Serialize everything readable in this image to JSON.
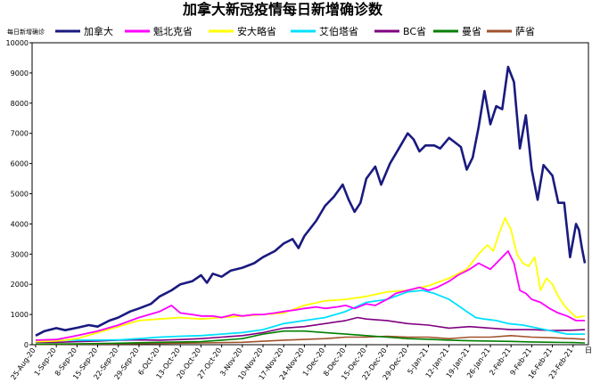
{
  "chart_data": {
    "type": "line",
    "title": "加拿大新冠疫情每日新增确诊数",
    "ylabel": "每日新增确诊",
    "xlabel": "日",
    "ylim": [
      0,
      10000
    ],
    "yticks": [
      0,
      1000,
      2000,
      3000,
      4000,
      5000,
      6000,
      7000,
      8000,
      9000,
      10000
    ],
    "legend_position": "top",
    "grid": false,
    "x_tick_labels": [
      "25-Aug-20",
      "1-Sep-20",
      "8-Sep-20",
      "15-Sep-20",
      "22-Sep-20",
      "29-Sep-20",
      "6-Oct-20",
      "13-Oct-20",
      "20-Oct-20",
      "27-Oct-20",
      "3-Nov-20",
      "10-Nov-20",
      "17-Nov-20",
      "24-Nov-20",
      "1-Dec-20",
      "8-Dec-20",
      "15-Dec-20",
      "22-Dec-20",
      "29-Dec-20",
      "5-Jan-21",
      "12-Jan-21",
      "19-Jan-21",
      "26-Jan-21",
      "2-Feb-21",
      "9-Feb-21",
      "16-Feb-21",
      "23-Feb-21"
    ],
    "x_first_day": 0,
    "x_last_day": 186,
    "series": [
      {
        "name": "加拿大",
        "color": "#1a1a80",
        "width": 2.6,
        "points": [
          [
            0,
            300
          ],
          [
            3,
            450
          ],
          [
            7,
            550
          ],
          [
            10,
            480
          ],
          [
            14,
            560
          ],
          [
            18,
            650
          ],
          [
            21,
            600
          ],
          [
            25,
            800
          ],
          [
            28,
            900
          ],
          [
            32,
            1100
          ],
          [
            35,
            1200
          ],
          [
            39,
            1350
          ],
          [
            42,
            1600
          ],
          [
            46,
            1800
          ],
          [
            49,
            2000
          ],
          [
            53,
            2100
          ],
          [
            56,
            2300
          ],
          [
            58,
            2050
          ],
          [
            60,
            2350
          ],
          [
            63,
            2250
          ],
          [
            66,
            2450
          ],
          [
            70,
            2550
          ],
          [
            74,
            2700
          ],
          [
            77,
            2900
          ],
          [
            81,
            3100
          ],
          [
            84,
            3350
          ],
          [
            87,
            3500
          ],
          [
            89,
            3200
          ],
          [
            91,
            3600
          ],
          [
            95,
            4100
          ],
          [
            98,
            4600
          ],
          [
            101,
            4900
          ],
          [
            104,
            5300
          ],
          [
            106,
            4800
          ],
          [
            108,
            4400
          ],
          [
            110,
            4700
          ],
          [
            112,
            5500
          ],
          [
            115,
            5900
          ],
          [
            117,
            5300
          ],
          [
            120,
            6000
          ],
          [
            123,
            6500
          ],
          [
            126,
            7000
          ],
          [
            128,
            6800
          ],
          [
            130,
            6400
          ],
          [
            132,
            6600
          ],
          [
            135,
            6600
          ],
          [
            137,
            6500
          ],
          [
            140,
            6850
          ],
          [
            142,
            6700
          ],
          [
            144,
            6550
          ],
          [
            146,
            5800
          ],
          [
            148,
            6200
          ],
          [
            150,
            7200
          ],
          [
            152,
            8400
          ],
          [
            154,
            7300
          ],
          [
            156,
            7900
          ],
          [
            158,
            7800
          ],
          [
            160,
            9200
          ],
          [
            162,
            8700
          ],
          [
            164,
            6500
          ],
          [
            166,
            7600
          ],
          [
            168,
            5800
          ],
          [
            170,
            4800
          ],
          [
            172,
            5950
          ],
          [
            175,
            5600
          ],
          [
            177,
            4700
          ],
          [
            179,
            4700
          ],
          [
            181,
            2900
          ],
          [
            183,
            4000
          ],
          [
            184,
            3800
          ],
          [
            185,
            3200
          ],
          [
            186,
            2700
          ]
        ]
      },
      {
        "name": "魁北克省",
        "color": "#ff00ff",
        "width": 1.8,
        "points": [
          [
            0,
            150
          ],
          [
            7,
            170
          ],
          [
            14,
            300
          ],
          [
            21,
            450
          ],
          [
            28,
            650
          ],
          [
            35,
            900
          ],
          [
            42,
            1100
          ],
          [
            46,
            1300
          ],
          [
            49,
            1050
          ],
          [
            53,
            1000
          ],
          [
            56,
            950
          ],
          [
            60,
            950
          ],
          [
            63,
            900
          ],
          [
            67,
            1000
          ],
          [
            70,
            950
          ],
          [
            74,
            1000
          ],
          [
            77,
            1000
          ],
          [
            81,
            1050
          ],
          [
            84,
            1100
          ],
          [
            88,
            1150
          ],
          [
            91,
            1200
          ],
          [
            95,
            1250
          ],
          [
            98,
            1200
          ],
          [
            102,
            1250
          ],
          [
            105,
            1300
          ],
          [
            108,
            1200
          ],
          [
            112,
            1350
          ],
          [
            115,
            1300
          ],
          [
            119,
            1500
          ],
          [
            122,
            1700
          ],
          [
            126,
            1800
          ],
          [
            130,
            1900
          ],
          [
            133,
            1800
          ],
          [
            136,
            1900
          ],
          [
            140,
            2100
          ],
          [
            143,
            2300
          ],
          [
            147,
            2500
          ],
          [
            150,
            2700
          ],
          [
            154,
            2500
          ],
          [
            157,
            2800
          ],
          [
            160,
            3100
          ],
          [
            162,
            2700
          ],
          [
            164,
            1800
          ],
          [
            166,
            1700
          ],
          [
            168,
            1500
          ],
          [
            171,
            1400
          ],
          [
            174,
            1200
          ],
          [
            177,
            1050
          ],
          [
            180,
            950
          ],
          [
            183,
            800
          ],
          [
            186,
            800
          ]
        ]
      },
      {
        "name": "安大略省",
        "color": "#ffff00",
        "width": 1.8,
        "points": [
          [
            0,
            100
          ],
          [
            7,
            120
          ],
          [
            14,
            200
          ],
          [
            21,
            400
          ],
          [
            28,
            600
          ],
          [
            35,
            800
          ],
          [
            42,
            850
          ],
          [
            49,
            900
          ],
          [
            56,
            850
          ],
          [
            63,
            900
          ],
          [
            70,
            950
          ],
          [
            77,
            1000
          ],
          [
            84,
            1050
          ],
          [
            91,
            1300
          ],
          [
            98,
            1450
          ],
          [
            105,
            1500
          ],
          [
            112,
            1600
          ],
          [
            119,
            1750
          ],
          [
            126,
            1800
          ],
          [
            133,
            1950
          ],
          [
            140,
            2200
          ],
          [
            146,
            2500
          ],
          [
            150,
            3000
          ],
          [
            153,
            3300
          ],
          [
            155,
            3100
          ],
          [
            157,
            3700
          ],
          [
            159,
            4200
          ],
          [
            161,
            3800
          ],
          [
            163,
            3000
          ],
          [
            165,
            2700
          ],
          [
            167,
            2600
          ],
          [
            169,
            2900
          ],
          [
            171,
            1800
          ],
          [
            173,
            2200
          ],
          [
            175,
            2000
          ],
          [
            177,
            1600
          ],
          [
            179,
            1300
          ],
          [
            181,
            1100
          ],
          [
            183,
            900
          ],
          [
            186,
            950
          ]
        ]
      },
      {
        "name": "艾伯塔省",
        "color": "#00e0ff",
        "width": 1.8,
        "points": [
          [
            0,
            100
          ],
          [
            7,
            150
          ],
          [
            14,
            150
          ],
          [
            21,
            150
          ],
          [
            28,
            160
          ],
          [
            35,
            200
          ],
          [
            42,
            250
          ],
          [
            49,
            280
          ],
          [
            56,
            300
          ],
          [
            63,
            350
          ],
          [
            70,
            400
          ],
          [
            77,
            500
          ],
          [
            84,
            700
          ],
          [
            91,
            800
          ],
          [
            98,
            900
          ],
          [
            105,
            1100
          ],
          [
            112,
            1400
          ],
          [
            119,
            1500
          ],
          [
            126,
            1750
          ],
          [
            131,
            1800
          ],
          [
            135,
            1700
          ],
          [
            140,
            1500
          ],
          [
            143,
            1300
          ],
          [
            146,
            1100
          ],
          [
            149,
            900
          ],
          [
            152,
            850
          ],
          [
            156,
            800
          ],
          [
            160,
            700
          ],
          [
            165,
            650
          ],
          [
            170,
            550
          ],
          [
            175,
            450
          ],
          [
            180,
            350
          ],
          [
            186,
            350
          ]
        ]
      },
      {
        "name": "BC省",
        "color": "#800080",
        "width": 1.6,
        "points": [
          [
            0,
            80
          ],
          [
            7,
            80
          ],
          [
            14,
            100
          ],
          [
            21,
            120
          ],
          [
            28,
            150
          ],
          [
            35,
            160
          ],
          [
            42,
            150
          ],
          [
            49,
            170
          ],
          [
            56,
            200
          ],
          [
            63,
            250
          ],
          [
            70,
            300
          ],
          [
            77,
            400
          ],
          [
            84,
            550
          ],
          [
            91,
            600
          ],
          [
            98,
            700
          ],
          [
            105,
            800
          ],
          [
            109,
            900
          ],
          [
            112,
            850
          ],
          [
            119,
            800
          ],
          [
            126,
            700
          ],
          [
            133,
            650
          ],
          [
            140,
            550
          ],
          [
            147,
            600
          ],
          [
            154,
            550
          ],
          [
            161,
            500
          ],
          [
            168,
            500
          ],
          [
            175,
            470
          ],
          [
            182,
            480
          ],
          [
            186,
            500
          ]
        ]
      },
      {
        "name": "曼省",
        "color": "#008000",
        "width": 1.6,
        "points": [
          [
            0,
            20
          ],
          [
            14,
            30
          ],
          [
            28,
            50
          ],
          [
            42,
            80
          ],
          [
            56,
            100
          ],
          [
            63,
            150
          ],
          [
            70,
            200
          ],
          [
            77,
            350
          ],
          [
            84,
            450
          ],
          [
            91,
            450
          ],
          [
            98,
            400
          ],
          [
            105,
            350
          ],
          [
            112,
            300
          ],
          [
            119,
            250
          ],
          [
            126,
            200
          ],
          [
            133,
            180
          ],
          [
            140,
            150
          ],
          [
            147,
            130
          ],
          [
            154,
            120
          ],
          [
            161,
            110
          ],
          [
            168,
            90
          ],
          [
            175,
            80
          ],
          [
            182,
            70
          ],
          [
            186,
            60
          ]
        ]
      },
      {
        "name": "萨省",
        "color": "#a0522d",
        "width": 1.6,
        "points": [
          [
            0,
            10
          ],
          [
            14,
            20
          ],
          [
            28,
            30
          ],
          [
            42,
            40
          ],
          [
            56,
            60
          ],
          [
            70,
            80
          ],
          [
            84,
            150
          ],
          [
            98,
            200
          ],
          [
            105,
            250
          ],
          [
            112,
            250
          ],
          [
            119,
            280
          ],
          [
            126,
            250
          ],
          [
            133,
            250
          ],
          [
            140,
            200
          ],
          [
            147,
            250
          ],
          [
            154,
            250
          ],
          [
            161,
            300
          ],
          [
            168,
            250
          ],
          [
            175,
            230
          ],
          [
            182,
            200
          ],
          [
            186,
            180
          ]
        ]
      }
    ]
  }
}
